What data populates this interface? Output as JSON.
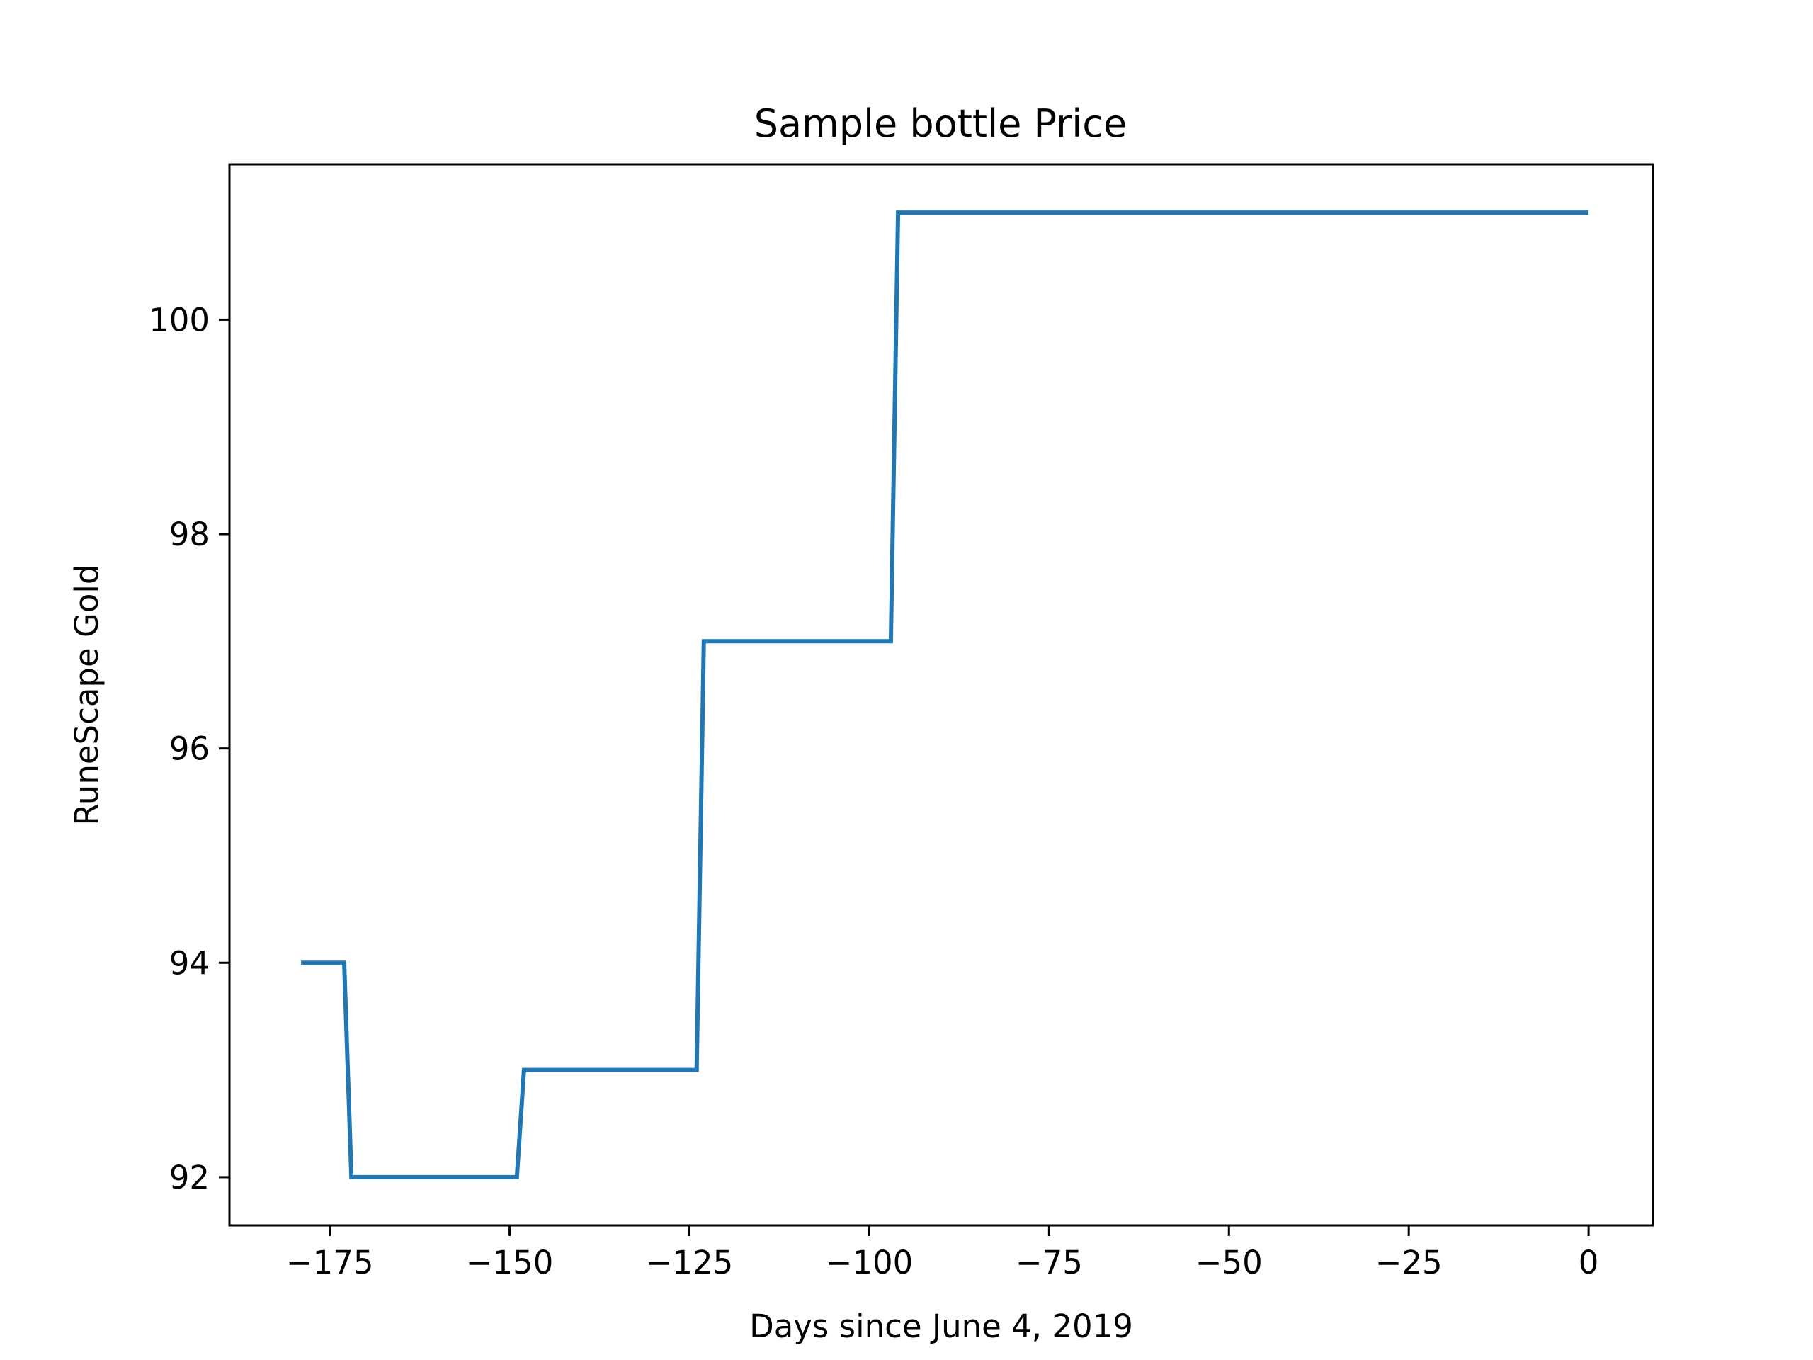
{
  "chart_data": {
    "type": "line",
    "title": "Sample bottle Price",
    "xlabel": "Days since June 4, 2019",
    "ylabel": "RuneScape Gold",
    "xlim": [
      -188.95,
      8.95
    ],
    "ylim": [
      91.55,
      101.45
    ],
    "xticks": [
      -175,
      -150,
      -125,
      -100,
      -75,
      -50,
      -25,
      0
    ],
    "xtick_labels": [
      "−175",
      "−150",
      "−125",
      "−100",
      "−75",
      "−50",
      "−25",
      "0"
    ],
    "yticks": [
      92,
      94,
      96,
      98,
      100
    ],
    "ytick_labels": [
      "92",
      "94",
      "96",
      "98",
      "100"
    ],
    "grid": false,
    "series": [
      {
        "color": "#1f77b4",
        "x": [
          -179,
          -173,
          -172,
          -149,
          -148,
          -124,
          -123,
          -97,
          -96,
          0
        ],
        "y": [
          94,
          94,
          92,
          92,
          93,
          93,
          97,
          97,
          101,
          101
        ]
      }
    ]
  }
}
